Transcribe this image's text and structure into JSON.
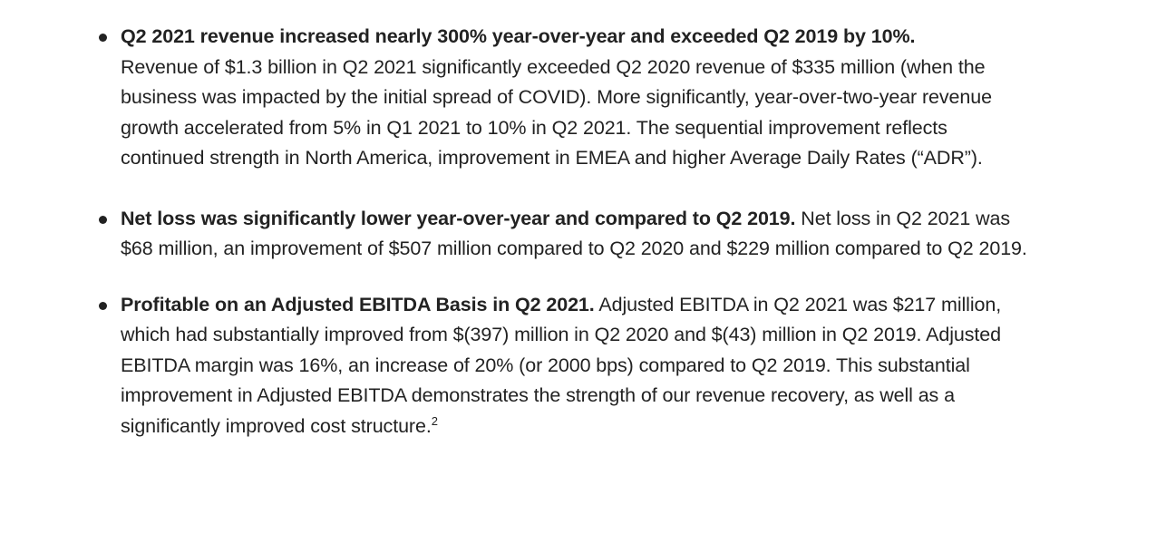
{
  "bullets": [
    {
      "lead": "Q2 2021 revenue increased nearly 300% year-over-year and exceeded Q2 2019 by 10%.",
      "body": "Revenue of $1.3 billion in Q2 2021 significantly exceeded Q2 2020 revenue of $335 million (when the business was impacted by the initial spread of COVID). More significantly, year-over-two-year revenue growth accelerated from 5% in Q1 2021 to 10% in Q2 2021. The sequential improvement reflects continued strength in North America, improvement in EMEA and higher Average Daily Rates (“ADR”).",
      "footnote": ""
    },
    {
      "lead": "Net loss was significantly lower year-over-year and compared to Q2 2019.",
      "body": "Net loss in Q2 2021 was $68 million, an improvement of $507 million compared to Q2 2020 and $229 million compared to Q2 2019.",
      "footnote": ""
    },
    {
      "lead": "Profitable on an Adjusted EBITDA Basis in Q2 2021.",
      "body": "Adjusted EBITDA in Q2 2021 was $217 million, which had substantially improved from $(397) million in Q2 2020 and $(43) million in Q2 2019. Adjusted EBITDA margin was 16%, an increase of 20% (or 2000 bps) compared to Q2 2019. This substantial improvement in Adjusted EBITDA demonstrates the strength of our revenue recovery, as well as a significantly improved cost structure.",
      "footnote": "2"
    }
  ]
}
